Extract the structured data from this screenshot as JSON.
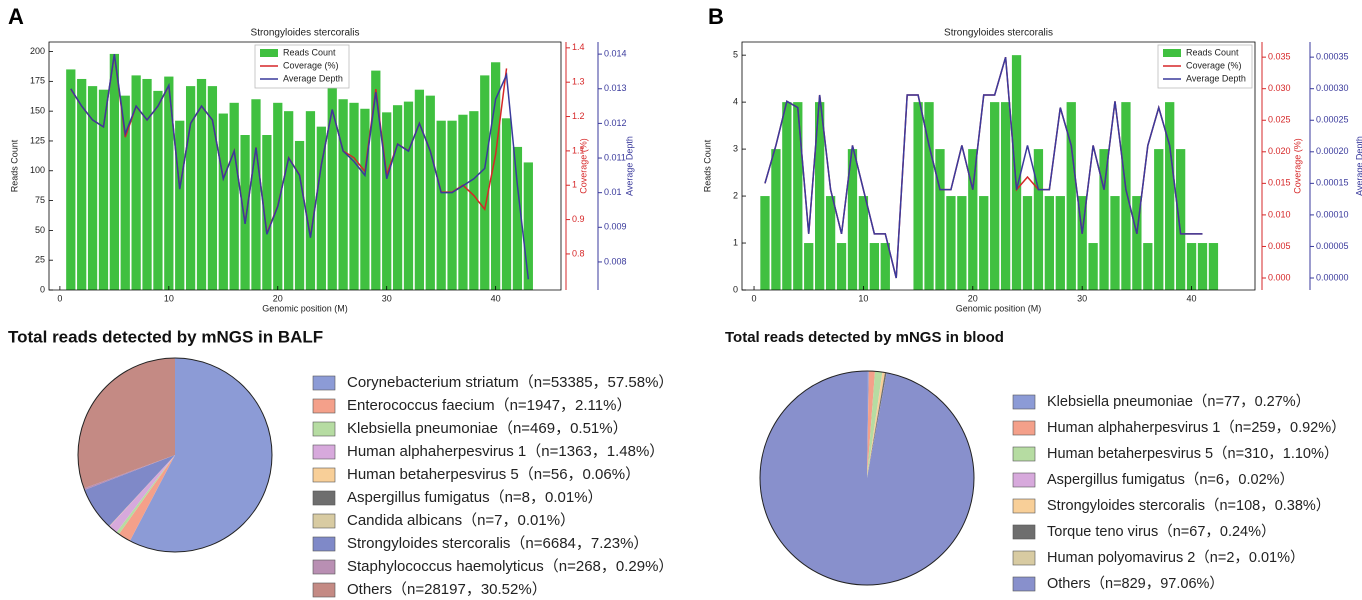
{
  "chart_data": [
    {
      "type": "bar_line",
      "panel": "A",
      "title": "Strongyloides stercoralis",
      "xlabel": "Genomic position (M)",
      "ylabel": "Reads Count",
      "y2label": "Coverage (%)",
      "y3label": "Average Depth",
      "x": [
        1,
        2,
        3,
        4,
        5,
        6,
        7,
        8,
        9,
        10,
        11,
        12,
        13,
        14,
        15,
        16,
        17,
        18,
        19,
        20,
        21,
        22,
        23,
        24,
        25,
        26,
        27,
        28,
        29,
        30,
        31,
        32,
        33,
        34,
        35,
        36,
        37,
        38,
        39,
        40,
        41,
        42,
        43
      ],
      "series": [
        {
          "name": "Reads Count",
          "color": "#40c040",
          "axis": "y",
          "values": [
            185,
            177,
            171,
            168,
            198,
            163,
            180,
            177,
            167,
            179,
            142,
            171,
            177,
            171,
            148,
            157,
            130,
            160,
            130,
            157,
            150,
            125,
            150,
            137,
            170,
            160,
            157,
            152,
            184,
            149,
            155,
            158,
            168,
            163,
            142,
            142,
            147,
            150,
            180,
            191,
            144,
            120,
            107
          ]
        },
        {
          "name": "Coverage (%)",
          "color": "#d62728",
          "axis": "y2",
          "values": [
            1.28,
            1.23,
            1.19,
            1.17,
            1.38,
            1.14,
            1.23,
            1.19,
            1.23,
            1.29,
            0.99,
            1.18,
            1.23,
            1.19,
            1.02,
            1.1,
            0.89,
            1.11,
            0.86,
            0.94,
            1.08,
            1.03,
            0.85,
            1.06,
            1.22,
            1.1,
            1.08,
            1.04,
            1.28,
            1.03,
            1.12,
            1.1,
            1.18,
            1.1,
            0.98,
            0.98,
            1.0,
            0.97,
            0.93,
            1.09,
            1.34,
            null,
            null
          ]
        },
        {
          "name": "Average Depth",
          "color": "#3a3a9c",
          "axis": "y3",
          "values": [
            0.013,
            0.0125,
            0.0121,
            0.0119,
            0.014,
            0.0117,
            0.0125,
            0.0121,
            0.0125,
            0.0131,
            0.0101,
            0.012,
            0.0125,
            0.0121,
            0.0104,
            0.0112,
            0.0091,
            0.0113,
            0.0088,
            0.0096,
            0.011,
            0.0105,
            0.0087,
            0.0108,
            0.0124,
            0.0112,
            0.0109,
            0.0105,
            0.0129,
            0.0104,
            0.0114,
            0.0112,
            0.012,
            0.0112,
            0.01,
            0.01,
            0.0102,
            0.0104,
            0.0107,
            0.0127,
            0.0134,
            0.0102,
            0.0075
          ]
        }
      ],
      "xlim": [
        -1,
        46
      ],
      "xticks": [
        0,
        10,
        20,
        30,
        40
      ],
      "ylim": [
        0,
        208
      ],
      "yticks": [
        0,
        25,
        50,
        75,
        100,
        125,
        150,
        175,
        200
      ],
      "y2lim": [
        0.695,
        1.417
      ],
      "y2ticks": [
        0.8,
        0.9,
        1.0,
        1.1,
        1.2,
        1.3,
        1.4
      ],
      "y3lim": [
        0.00719,
        0.01435
      ],
      "y3ticks": [
        0.008,
        0.009,
        0.01,
        0.011,
        0.012,
        0.013,
        0.014
      ]
    },
    {
      "type": "bar_line",
      "panel": "B",
      "title": "Strongyloides stercoralis",
      "xlabel": "Genomic position (M)",
      "ylabel": "Reads Count",
      "y2label": "Coverage (%)",
      "y3label": "Average Depth",
      "x": [
        1,
        2,
        3,
        4,
        5,
        6,
        7,
        8,
        9,
        10,
        11,
        12,
        13,
        14,
        15,
        16,
        17,
        18,
        19,
        20,
        21,
        22,
        23,
        24,
        25,
        26,
        27,
        28,
        29,
        30,
        31,
        32,
        33,
        34,
        35,
        36,
        37,
        38,
        39,
        40,
        41,
        42
      ],
      "series": [
        {
          "name": "Reads Count",
          "color": "#40c040",
          "axis": "y",
          "values": [
            2,
            3,
            4,
            4,
            1,
            4,
            2,
            1,
            3,
            2,
            1,
            1,
            0,
            0,
            4,
            4,
            3,
            2,
            2,
            3,
            2,
            4,
            4,
            5,
            2,
            3,
            2,
            2,
            4,
            2,
            1,
            3,
            2,
            4,
            2,
            1,
            3,
            4,
            3,
            1,
            1,
            1
          ]
        },
        {
          "name": "Coverage (%)",
          "color": "#d62728",
          "axis": "y2",
          "values": [
            0.015,
            0.021,
            0.028,
            0.027,
            0.007,
            0.029,
            0.014,
            0.007,
            0.021,
            0.014,
            0.007,
            0.007,
            0.0,
            0.029,
            0.029,
            0.021,
            0.014,
            0.014,
            0.021,
            0.014,
            0.029,
            0.029,
            0.035,
            0.014,
            0.016,
            0.014,
            0.014,
            0.027,
            0.021,
            0.007,
            0.021,
            0.014,
            0.028,
            0.014,
            0.007,
            0.021,
            0.027,
            0.021,
            0.007,
            0.007,
            0.007,
            null
          ]
        },
        {
          "name": "Average Depth",
          "color": "#3a3a9c",
          "axis": "y3",
          "values": [
            0.00015,
            0.00021,
            0.00028,
            0.00027,
            7e-05,
            0.00029,
            0.00014,
            7e-05,
            0.00021,
            0.00014,
            7e-05,
            7e-05,
            0.0,
            0.00029,
            0.00029,
            0.00021,
            0.00014,
            0.00014,
            0.00021,
            0.00014,
            0.00029,
            0.00029,
            0.00035,
            0.00014,
            0.00021,
            0.00014,
            0.00014,
            0.00027,
            0.00021,
            7e-05,
            0.00021,
            0.00014,
            0.00028,
            0.00014,
            7e-05,
            0.00021,
            0.00027,
            0.00021,
            7e-05,
            7e-05,
            7e-05,
            null
          ]
        }
      ],
      "xlim": [
        -1.1,
        45.8
      ],
      "xticks": [
        0,
        10,
        20,
        30,
        40
      ],
      "ylim": [
        0,
        5.28
      ],
      "yticks": [
        0,
        1,
        2,
        3,
        4,
        5
      ],
      "y2lim": [
        -0.0019,
        0.0374
      ],
      "y2ticks": [
        {
          "value": 0,
          "label": "0.000"
        },
        0.005,
        {
          "value": 0.01,
          "label": "0.010"
        },
        0.015,
        {
          "value": 0.02,
          "label": "0.020"
        },
        0.025,
        {
          "value": 0.03,
          "label": "0.030"
        },
        0.035
      ],
      "y3lim": [
        -1.9e-05,
        0.000374
      ],
      "y3ticks": [
        {
          "value": 0,
          "label": "0.00000"
        },
        {
          "value": 5e-05,
          "label": "0.00005"
        },
        {
          "value": 0.0001,
          "label": "0.00010"
        },
        {
          "value": 0.00015,
          "label": "0.00015"
        },
        {
          "value": 0.0002,
          "label": "0.00020"
        },
        {
          "value": 0.00025,
          "label": "0.00025"
        },
        {
          "value": 0.0003,
          "label": "0.00030"
        },
        {
          "value": 0.00035,
          "label": "0.00035"
        }
      ]
    },
    {
      "type": "pie",
      "title": "Total reads detected by mNGS in BALF",
      "categories": [
        "Corynebacterium striatum",
        "Enterococcus faecium",
        "Klebsiella pneumoniae",
        "Human alphaherpesvirus 1",
        "Human betaherpesvirus 5",
        "Aspergillus fumigatus",
        "Candida albicans",
        "Strongyloides stercoralis",
        "Staphylococcus haemolyticus",
        "Others"
      ],
      "values": [
        57.58,
        2.11,
        0.51,
        1.48,
        0.06,
        0.01,
        0.01,
        7.23,
        0.29,
        30.52
      ],
      "value_labels": [
        "（n=53385，57.58%）",
        "（n=1947，2.11%）",
        "（n=469，0.51%）",
        "（n=1363，1.48%）",
        "（n=56，0.06%）",
        "（n=8，0.01%）",
        "（n=7，0.01%）",
        "（n=6684，7.23%）",
        "（n=268，0.29%）",
        "（n=28197，30.52%）"
      ],
      "colors": [
        "#8c9bd6",
        "#f4a08a",
        "#b6dca2",
        "#d7a9dc",
        "#f8cf98",
        "#6e6e6e",
        "#d8cba2",
        "#7f89c8",
        "#b98fb3",
        "#c48a84"
      ]
    },
    {
      "type": "pie",
      "title": "Total reads detected by mNGS in blood",
      "categories": [
        "Klebsiella pneumoniae",
        "Human alphaherpesvirus 1",
        "Human betaherpesvirus 5",
        "Aspergillus fumigatus",
        "Strongyloides stercoralis",
        "Torque teno virus",
        "Human polyomavirus 2",
        "Others"
      ],
      "values": [
        0.27,
        0.92,
        1.1,
        0.02,
        0.38,
        0.24,
        0.01,
        97.06
      ],
      "value_labels": [
        "（n=77，0.27%）",
        "（n=259，0.92%）",
        "（n=310，1.10%）",
        "（n=6，0.02%）",
        "（n=108，0.38%）",
        "（n=67，0.24%）",
        "（n=2，0.01%）",
        "（n=829，97.06%）"
      ],
      "colors": [
        "#8c9bd6",
        "#f4a08a",
        "#b6dca2",
        "#d7a9dc",
        "#f8cf98",
        "#6e6e6e",
        "#d8cba2",
        "#8890cc"
      ]
    }
  ]
}
